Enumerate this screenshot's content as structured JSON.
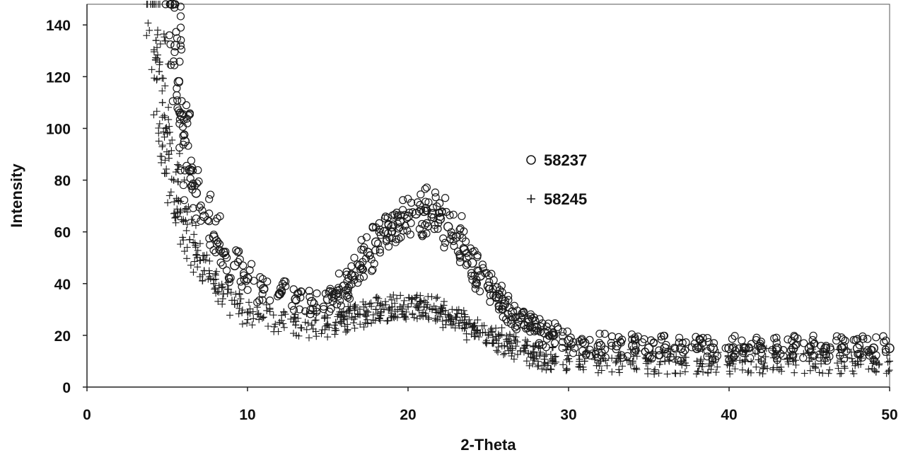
{
  "chart_data": {
    "type": "scatter",
    "title": "",
    "xlabel": "2-Theta",
    "ylabel": "Intensity",
    "xlim": [
      0,
      50
    ],
    "ylim": [
      0,
      148
    ],
    "x_ticks": [
      0,
      10,
      20,
      30,
      40,
      50
    ],
    "y_ticks": [
      0,
      20,
      40,
      60,
      80,
      100,
      120,
      140
    ],
    "grid": false,
    "legend_position": "center-right",
    "series": [
      {
        "name": "58237",
        "marker": "circle",
        "color": "#1a1a1a",
        "x": [
          5.3,
          5.5,
          5.7,
          5.9,
          6.1,
          6.4,
          6.8,
          7.3,
          7.9,
          8.5,
          9.2,
          10,
          11,
          12,
          13,
          14,
          15,
          15.5,
          16,
          16.5,
          17,
          17.5,
          18,
          18.5,
          19,
          19.5,
          20,
          20.5,
          21,
          21.5,
          22,
          22.5,
          23,
          23.5,
          24,
          24.5,
          25,
          25.5,
          26,
          26.5,
          27,
          27.5,
          28,
          28.5,
          29,
          30,
          31,
          32,
          33,
          34,
          35,
          36,
          37,
          38,
          39,
          40,
          41,
          42,
          43,
          44,
          45,
          46,
          47,
          48,
          49,
          50
        ],
        "y": [
          148,
          132,
          118,
          105,
          95,
          84,
          75,
          66,
          58,
          52,
          47,
          42,
          38,
          36,
          34,
          33,
          34,
          36,
          39,
          43,
          47,
          52,
          56,
          60,
          62,
          64,
          66,
          67,
          68,
          67,
          65,
          62,
          58,
          53,
          48,
          43,
          39,
          35,
          32,
          29,
          27,
          25,
          23,
          21,
          20,
          18,
          17,
          16,
          16,
          16,
          15,
          15,
          15,
          15,
          15,
          15,
          15,
          15,
          15,
          15,
          15,
          15,
          15,
          15,
          15,
          15
        ]
      },
      {
        "name": "58245",
        "marker": "plus",
        "color": "#1a1a1a",
        "x": [
          4.1,
          4.3,
          4.5,
          4.7,
          4.9,
          5.1,
          5.4,
          5.7,
          6,
          6.4,
          6.8,
          7.3,
          7.9,
          8.5,
          9.2,
          10,
          11,
          12,
          13,
          14,
          15,
          15.5,
          16,
          16.5,
          17,
          17.5,
          18,
          18.5,
          19,
          19.5,
          20,
          20.5,
          21,
          21.5,
          22,
          22.5,
          23,
          23.5,
          24,
          24.5,
          25,
          25.5,
          26,
          26.5,
          27,
          27.5,
          28,
          28.5,
          29,
          30,
          31,
          32,
          33,
          34,
          35,
          36,
          37,
          38,
          39,
          40,
          41,
          42,
          43,
          44,
          45,
          46,
          47,
          48,
          49,
          50
        ],
        "y": [
          148,
          134,
          122,
          110,
          100,
          90,
          80,
          72,
          64,
          57,
          51,
          45,
          40,
          36,
          32,
          29,
          27,
          25,
          24,
          24,
          24,
          25,
          26,
          27,
          28,
          29,
          30,
          30,
          31,
          31,
          31,
          31,
          31,
          30,
          29,
          28,
          27,
          25,
          23,
          21,
          20,
          18,
          16,
          15,
          14,
          13,
          12,
          12,
          11,
          11,
          10,
          10,
          10,
          10,
          10,
          10,
          10,
          10,
          10,
          10,
          10,
          10,
          10,
          10,
          10,
          10,
          10,
          10,
          10,
          10
        ]
      }
    ]
  }
}
